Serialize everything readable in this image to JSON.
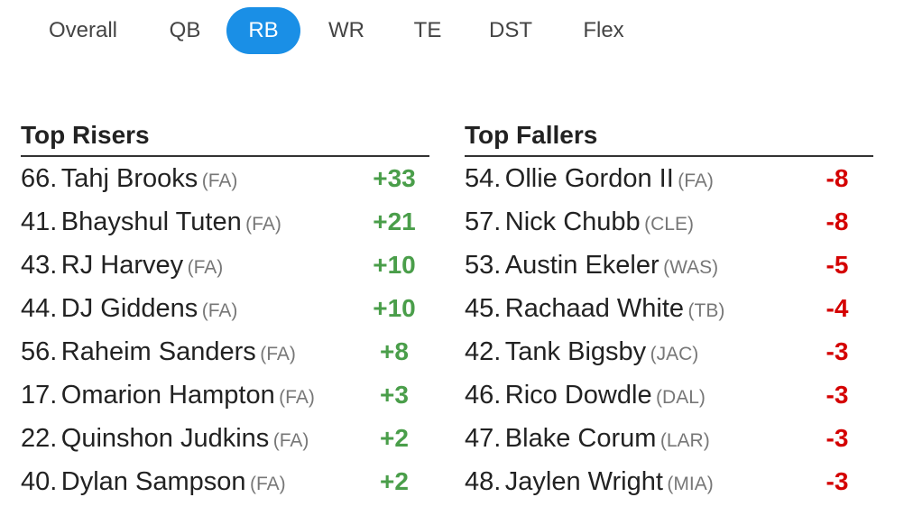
{
  "tabs": [
    {
      "label": "Overall",
      "selected": false
    },
    {
      "label": "QB",
      "selected": false
    },
    {
      "label": "RB",
      "selected": true
    },
    {
      "label": "WR",
      "selected": false
    },
    {
      "label": "TE",
      "selected": false
    },
    {
      "label": "DST",
      "selected": false
    },
    {
      "label": "Flex",
      "selected": false
    }
  ],
  "risers": {
    "title": "Top Risers",
    "rows": [
      {
        "rank": "66.",
        "name": "Tahj Brooks",
        "team": "(FA)",
        "change": "+33"
      },
      {
        "rank": "41.",
        "name": "Bhayshul Tuten",
        "team": "(FA)",
        "change": "+21"
      },
      {
        "rank": "43.",
        "name": "RJ Harvey",
        "team": "(FA)",
        "change": "+10"
      },
      {
        "rank": "44.",
        "name": "DJ Giddens",
        "team": "(FA)",
        "change": "+10"
      },
      {
        "rank": "56.",
        "name": "Raheim Sanders",
        "team": "(FA)",
        "change": "+8"
      },
      {
        "rank": "17.",
        "name": "Omarion Hampton",
        "team": "(FA)",
        "change": "+3"
      },
      {
        "rank": "22.",
        "name": "Quinshon Judkins",
        "team": "(FA)",
        "change": "+2"
      },
      {
        "rank": "40.",
        "name": "Dylan Sampson",
        "team": "(FA)",
        "change": "+2"
      }
    ]
  },
  "fallers": {
    "title": "Top Fallers",
    "rows": [
      {
        "rank": "54.",
        "name": "Ollie Gordon II",
        "team": "(FA)",
        "change": "-8"
      },
      {
        "rank": "57.",
        "name": "Nick Chubb",
        "team": "(CLE)",
        "change": "-8"
      },
      {
        "rank": "53.",
        "name": "Austin Ekeler",
        "team": "(WAS)",
        "change": "-5"
      },
      {
        "rank": "45.",
        "name": "Rachaad White",
        "team": "(TB)",
        "change": "-4"
      },
      {
        "rank": "42.",
        "name": "Tank Bigsby",
        "team": "(JAC)",
        "change": "-3"
      },
      {
        "rank": "46.",
        "name": "Rico Dowdle",
        "team": "(DAL)",
        "change": "-3"
      },
      {
        "rank": "47.",
        "name": "Blake Corum",
        "team": "(LAR)",
        "change": "-3"
      },
      {
        "rank": "48.",
        "name": "Jaylen Wright",
        "team": "(MIA)",
        "change": "-3"
      }
    ]
  }
}
